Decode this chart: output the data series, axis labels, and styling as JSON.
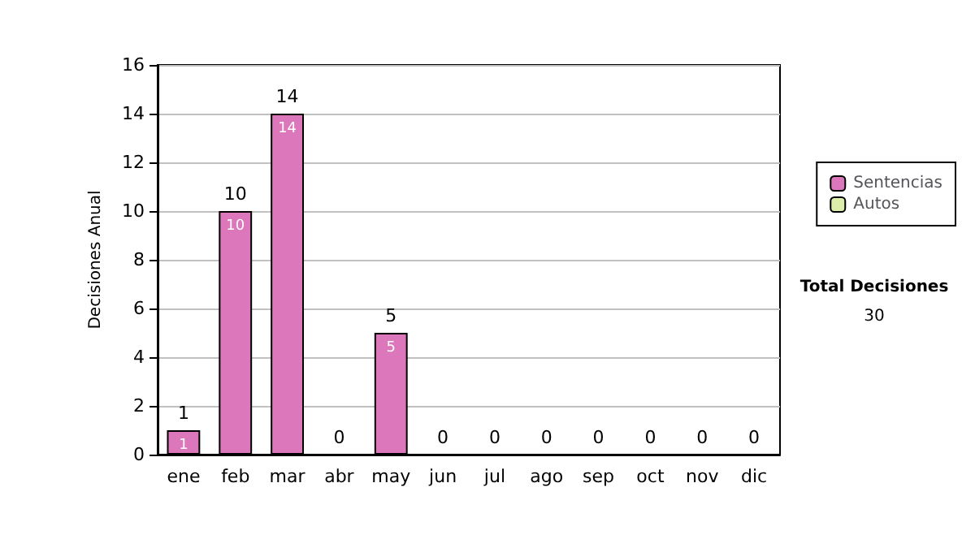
{
  "chart_data": {
    "type": "bar",
    "stacked": true,
    "ylabel": "Decisiones Anual",
    "categories": [
      "ene",
      "feb",
      "mar",
      "abr",
      "may",
      "jun",
      "jul",
      "ago",
      "sep",
      "oct",
      "nov",
      "dic"
    ],
    "series": [
      {
        "name": "Sentencias",
        "color": "#dd77bb",
        "values": [
          1,
          10,
          14,
          0,
          5,
          0,
          0,
          0,
          0,
          0,
          0,
          0
        ],
        "value_labels": [
          "1",
          "10",
          "14",
          null,
          "5",
          null,
          null,
          null,
          null,
          null,
          null,
          null
        ]
      },
      {
        "name": "Autos",
        "color": "#ddeeaa",
        "values": [
          0,
          0,
          0,
          0,
          0,
          0,
          0,
          0,
          0,
          0,
          0,
          0
        ]
      }
    ],
    "totals": [
      "1",
      "10",
      "14",
      "0",
      "5",
      "0",
      "0",
      "0",
      "0",
      "0",
      "0",
      "0"
    ],
    "ylim": [
      0,
      16
    ],
    "yticks": [
      0,
      2,
      4,
      6,
      8,
      10,
      12,
      14,
      16
    ],
    "grid": "y",
    "legend": "right",
    "annotations": [
      "Total Decisiones",
      "30"
    ]
  }
}
